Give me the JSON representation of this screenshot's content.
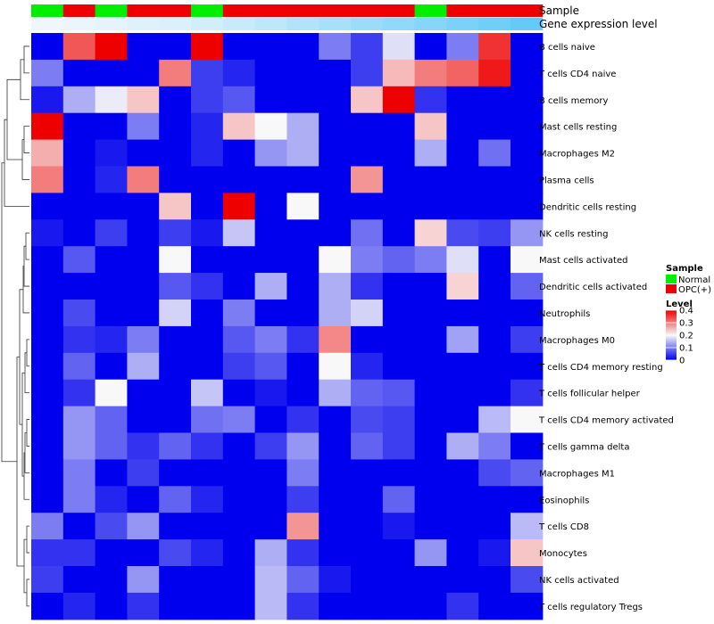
{
  "chart_data": {
    "type": "heatmap",
    "annotation_titles": [
      "Sample",
      "Gene expression level"
    ],
    "sample_groups": [
      "N",
      "O",
      "N",
      "O",
      "O",
      "N",
      "O",
      "O",
      "O",
      "O",
      "O",
      "O",
      "N",
      "O",
      "O",
      "O"
    ],
    "expression_level": [
      0.03,
      0.06,
      0.1,
      0.13,
      0.16,
      0.2,
      0.26,
      0.33,
      0.4,
      0.46,
      0.53,
      0.6,
      0.66,
      0.73,
      0.8,
      0.86
    ],
    "rows": [
      "B cells naive",
      "T cells CD4 naive",
      "B cells memory",
      "Mast cells resting",
      "Macrophages M2",
      "Plasma cells",
      "Dendritic cells resting",
      "NK cells resting",
      "Mast cells activated",
      "Dendritic cells activated",
      "Neutrophils",
      "Macrophages M0",
      "T cells CD4 memory resting",
      "T cells follicular helper",
      "T cells CD4 memory activated",
      "T cells gamma delta",
      "Macrophages M1",
      "Eosinophils",
      "T cells CD8",
      "Monocytes",
      "NK cells activated",
      "T cells regulatory  Tregs"
    ],
    "values": [
      [
        0,
        0.33,
        0.4,
        0,
        0,
        0.4,
        0,
        0,
        0,
        0.1,
        0.05,
        0.18,
        0,
        0.1,
        0.36,
        0
      ],
      [
        0.1,
        0,
        0,
        0,
        0.3,
        0.05,
        0.03,
        0,
        0,
        0,
        0.05,
        0.25,
        0.3,
        0.32,
        0.38,
        0
      ],
      [
        0.02,
        0.14,
        0.19,
        0.24,
        0,
        0.05,
        0.07,
        0,
        0,
        0,
        0.24,
        0.4,
        0.04,
        0,
        0,
        0
      ],
      [
        0.4,
        0,
        0,
        0.1,
        0,
        0.03,
        0.24,
        0.2,
        0.14,
        0,
        0,
        0,
        0.24,
        0,
        0,
        0
      ],
      [
        0.26,
        0,
        0.02,
        0,
        0,
        0.03,
        0,
        0.12,
        0.14,
        0,
        0,
        0,
        0.14,
        0,
        0.09,
        0
      ],
      [
        0.3,
        0,
        0.03,
        0.3,
        0,
        0,
        0,
        0,
        0,
        0,
        0.28,
        0,
        0,
        0,
        0,
        0
      ],
      [
        0,
        0,
        0,
        0,
        0.24,
        0,
        0.4,
        0,
        0.2,
        0,
        0,
        0,
        0,
        0,
        0,
        0
      ],
      [
        0.02,
        0,
        0.05,
        0,
        0.05,
        0.02,
        0.16,
        0,
        0,
        0,
        0.09,
        0,
        0.23,
        0.06,
        0.05,
        0.12
      ],
      [
        0,
        0.07,
        0,
        0,
        0.2,
        0,
        0,
        0,
        0,
        0.2,
        0.1,
        0.08,
        0.1,
        0.18,
        0,
        0.2
      ],
      [
        0,
        0,
        0,
        0,
        0.07,
        0.04,
        0,
        0.14,
        0,
        0.14,
        0.04,
        0,
        0,
        0.23,
        0,
        0.08
      ],
      [
        0,
        0.06,
        0,
        0,
        0.17,
        0,
        0.1,
        0,
        0,
        0.14,
        0.17,
        0,
        0,
        0,
        0,
        0
      ],
      [
        0,
        0.04,
        0.03,
        0.1,
        0,
        0,
        0.07,
        0.1,
        0.04,
        0.29,
        0,
        0,
        0,
        0.13,
        0,
        0.05
      ],
      [
        0,
        0.08,
        0,
        0.14,
        0,
        0,
        0.05,
        0.07,
        0,
        0.2,
        0.03,
        0,
        0,
        0,
        0,
        0
      ],
      [
        0,
        0.04,
        0.2,
        0,
        0,
        0.16,
        0,
        0.02,
        0,
        0.14,
        0.08,
        0.07,
        0,
        0,
        0,
        0.04
      ],
      [
        0,
        0.12,
        0.08,
        0,
        0,
        0.09,
        0.1,
        0,
        0.04,
        0,
        0.06,
        0.05,
        0,
        0,
        0.15,
        0.2
      ],
      [
        0,
        0.12,
        0.08,
        0.04,
        0.08,
        0.04,
        0,
        0.05,
        0.12,
        0,
        0.08,
        0.05,
        0,
        0.14,
        0.1,
        0
      ],
      [
        0,
        0.1,
        0,
        0.05,
        0,
        0,
        0,
        0,
        0.1,
        0,
        0,
        0,
        0,
        0,
        0.06,
        0.08
      ],
      [
        0,
        0.1,
        0.03,
        0,
        0.08,
        0.03,
        0,
        0,
        0.05,
        0,
        0,
        0.08,
        0,
        0,
        0,
        0
      ],
      [
        0.1,
        0,
        0.06,
        0.12,
        0,
        0,
        0,
        0,
        0.28,
        0,
        0,
        0.02,
        0,
        0,
        0,
        0.15
      ],
      [
        0.04,
        0.04,
        0,
        0,
        0.06,
        0.03,
        0,
        0.14,
        0.04,
        0,
        0,
        0,
        0.12,
        0,
        0.02,
        0.24
      ],
      [
        0.05,
        0,
        0,
        0.12,
        0,
        0,
        0,
        0.15,
        0.08,
        0.02,
        0,
        0,
        0,
        0,
        0,
        0.06
      ],
      [
        0,
        0.03,
        0,
        0.04,
        0,
        0,
        0,
        0.15,
        0.04,
        0,
        0,
        0,
        0,
        0.04,
        0,
        0
      ]
    ],
    "legend": {
      "sample_title": "Sample",
      "sample_entries": [
        {
          "label": "Normal",
          "color": "#00ee00"
        },
        {
          "label": "OPC(+)",
          "color": "#ee0000"
        }
      ],
      "level_title": "Level",
      "level_ticks": [
        "0.4",
        "0.3",
        "0.2",
        "0.1",
        "0"
      ],
      "level_tick_values": [
        0.4,
        0.3,
        0.2,
        0.1,
        0
      ]
    },
    "color_scale": {
      "low": "#0000ee",
      "mid": "#f8f8f8",
      "high": "#ee0000",
      "min": 0,
      "max": 0.4
    },
    "expression_scale": {
      "low": "#f4f8fc",
      "high": "#4fc3f7"
    }
  }
}
